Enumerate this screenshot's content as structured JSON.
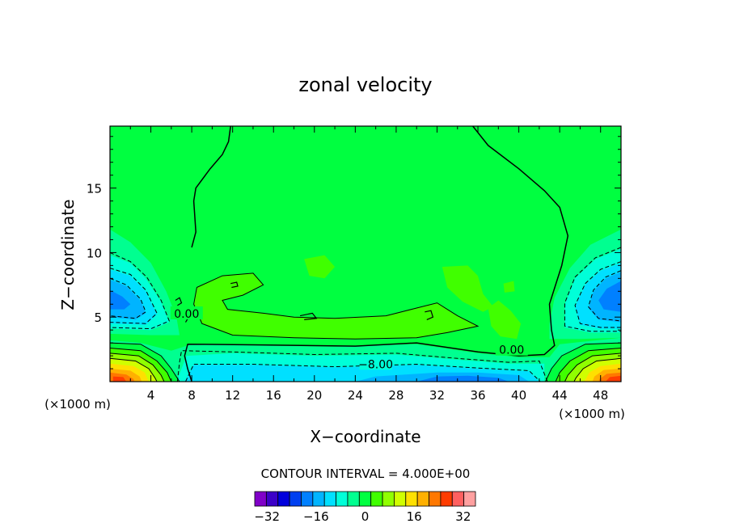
{
  "chart_data": {
    "type": "heatmap",
    "title": "zonal velocity",
    "xlabel": "X−coordinate",
    "ylabel": "Z−coordinate",
    "x_unit_left": "(×1000 m)",
    "x_unit_right": "(×1000 m)",
    "xlim": [
      0,
      50
    ],
    "ylim": [
      0,
      19.8
    ],
    "x_ticks": [
      4,
      8,
      12,
      16,
      20,
      24,
      28,
      32,
      36,
      40,
      44,
      48
    ],
    "x_tick_labels": [
      "4",
      "8",
      "12",
      "16",
      "20",
      "24",
      "28",
      "32",
      "36",
      "40",
      "44",
      "48"
    ],
    "y_ticks": [
      5,
      10,
      15
    ],
    "y_tick_labels": [
      "5",
      "10",
      "15"
    ],
    "contour_interval_text": "CONTOUR INTERVAL = 4.000E+00",
    "contour_interval": 4,
    "contour_labels": [
      {
        "text": "0.00",
        "x": 7.5,
        "z": 5.2
      },
      {
        "text": "−8.00",
        "x": 26.0,
        "z": 1.3
      },
      {
        "text": "0.00",
        "x": 39.3,
        "z": 2.4
      }
    ],
    "colorbar": {
      "levels": [
        -36,
        -32,
        -28,
        -24,
        -20,
        -16,
        -12,
        -8,
        -4,
        0,
        4,
        8,
        12,
        16,
        20,
        24,
        28,
        32,
        36
      ],
      "tick_values": [
        -32,
        -16,
        0,
        16,
        32
      ],
      "tick_labels": [
        "−32",
        "−16",
        "0",
        "16",
        "32"
      ],
      "colors": [
        "#8000c8",
        "#3c00c8",
        "#0000dc",
        "#0040f0",
        "#0080ff",
        "#00b4ff",
        "#00e0ff",
        "#00ffd8",
        "#00ff90",
        "#00ff40",
        "#40ff00",
        "#90ff00",
        "#d0ff00",
        "#ffe000",
        "#ffb000",
        "#ff7800",
        "#ff3c00",
        "#ff6060",
        "#ffa0a0"
      ]
    }
  }
}
